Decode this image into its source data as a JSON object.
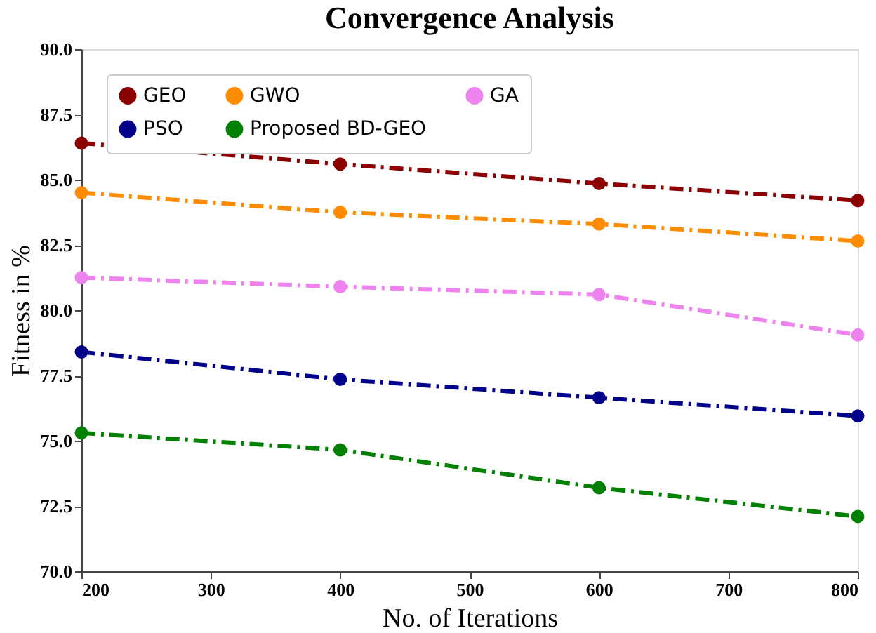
{
  "chart_data": {
    "type": "line",
    "title": "Convergence Analysis",
    "xlabel": "No. of Iterations",
    "ylabel": "Fitness in %",
    "x": [
      200,
      400,
      600,
      800
    ],
    "xlim": [
      200,
      800
    ],
    "xticks": [
      200,
      300,
      400,
      500,
      600,
      700,
      800
    ],
    "ylim": [
      70,
      90
    ],
    "yticks": [
      {
        "value": 70,
        "label": "70.0"
      },
      {
        "value": 72.5,
        "label": "72.5"
      },
      {
        "value": 75,
        "label": "75.0"
      },
      {
        "value": 77.5,
        "label": "77.5"
      },
      {
        "value": 80,
        "label": "80.0"
      },
      {
        "value": 82.5,
        "label": "82.5"
      },
      {
        "value": 85,
        "label": "85.0"
      },
      {
        "value": 87.5,
        "label": "87.5"
      },
      {
        "value": 90,
        "label": "90.0"
      }
    ],
    "series": [
      {
        "name": "GEO",
        "color": "#8b0000",
        "values": [
          86.4,
          85.6,
          84.85,
          84.2
        ]
      },
      {
        "name": "GWO",
        "color": "#ff8c00",
        "values": [
          84.5,
          83.75,
          83.3,
          82.65
        ]
      },
      {
        "name": "GA",
        "color": "#ee82ee",
        "values": [
          81.25,
          80.9,
          80.6,
          79.05
        ]
      },
      {
        "name": "PSO",
        "color": "#00008b",
        "values": [
          78.4,
          77.35,
          76.65,
          75.95
        ]
      },
      {
        "name": "Proposed BD-GEO",
        "color": "#008000",
        "values": [
          75.3,
          74.65,
          73.2,
          72.1
        ]
      }
    ],
    "marker": "circle",
    "line_style": "dashed",
    "legend": "top left",
    "grid": false
  }
}
